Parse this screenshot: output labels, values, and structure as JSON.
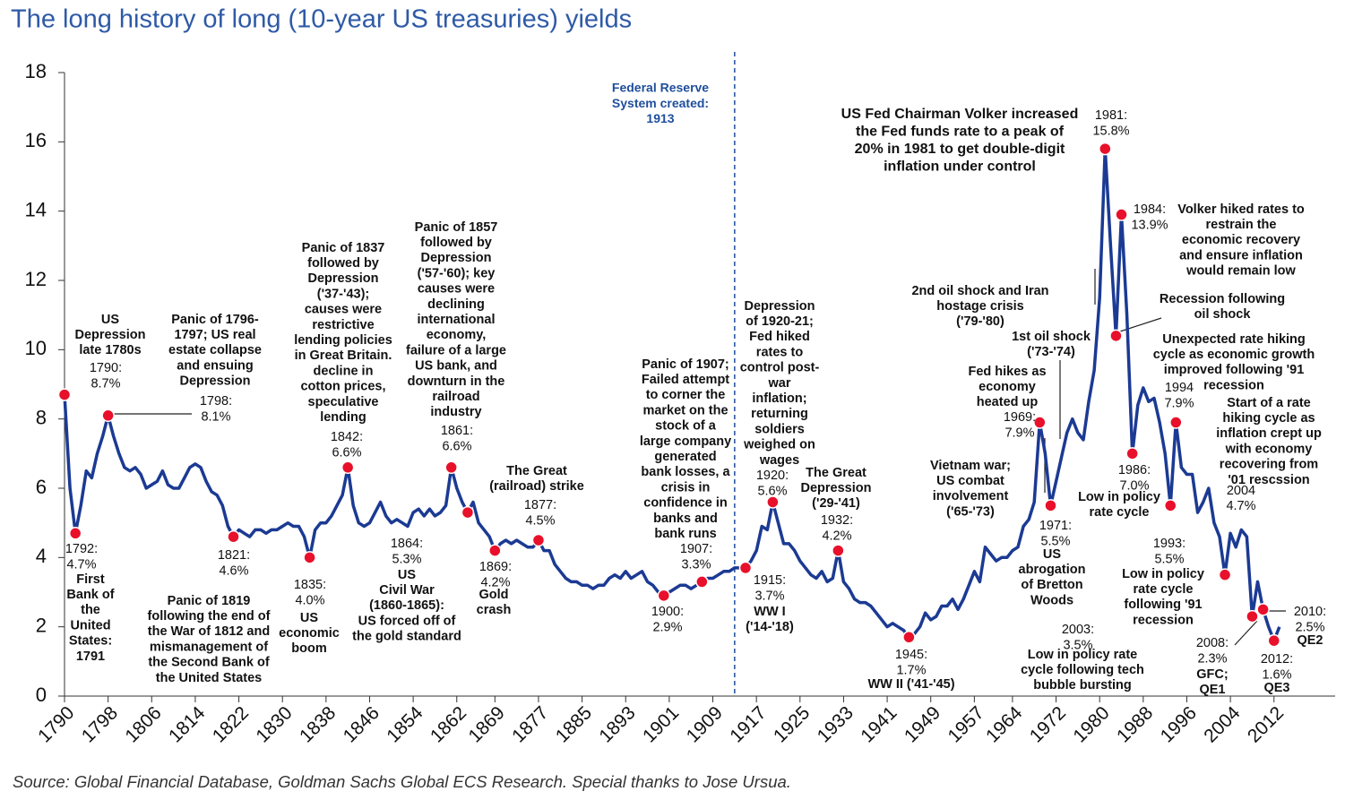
{
  "chart_data": {
    "type": "line",
    "title": "The long history of long (10-year US treasuries) yields",
    "source": "Source: Global Financial Database, Goldman Sachs Global ECS Research. Special thanks to Jose Ursua.",
    "color": "#1b3a93",
    "marker_color": "#e8102a",
    "xlim": [
      1790,
      2023
    ],
    "ylim": [
      0,
      18
    ],
    "yticks": [
      0,
      2,
      4,
      6,
      8,
      10,
      12,
      14,
      16,
      18
    ],
    "xticks": [
      1790,
      1798,
      1806,
      1814,
      1822,
      1830,
      1838,
      1846,
      1854,
      1862,
      1869,
      1877,
      1885,
      1893,
      1901,
      1909,
      1917,
      1925,
      1933,
      1941,
      1949,
      1957,
      1964,
      1972,
      1980,
      1988,
      1996,
      2004,
      2012
    ],
    "reference_line_x": 1913,
    "x": [
      1790,
      1791,
      1792,
      1793,
      1794,
      1795,
      1796,
      1797,
      1798,
      1799,
      1800,
      1801,
      1802,
      1803,
      1804,
      1805,
      1806,
      1807,
      1808,
      1809,
      1810,
      1811,
      1812,
      1813,
      1814,
      1815,
      1816,
      1817,
      1818,
      1819,
      1820,
      1821,
      1822,
      1823,
      1824,
      1825,
      1826,
      1827,
      1828,
      1829,
      1830,
      1831,
      1832,
      1833,
      1834,
      1835,
      1836,
      1837,
      1838,
      1839,
      1840,
      1841,
      1842,
      1843,
      1844,
      1845,
      1846,
      1847,
      1848,
      1849,
      1850,
      1851,
      1852,
      1853,
      1854,
      1855,
      1856,
      1857,
      1858,
      1859,
      1860,
      1861,
      1862,
      1863,
      1864,
      1865,
      1866,
      1867,
      1868,
      1869,
      1870,
      1871,
      1872,
      1873,
      1874,
      1875,
      1876,
      1877,
      1878,
      1879,
      1880,
      1881,
      1882,
      1883,
      1884,
      1885,
      1886,
      1887,
      1888,
      1889,
      1890,
      1891,
      1892,
      1893,
      1894,
      1895,
      1896,
      1897,
      1898,
      1899,
      1900,
      1901,
      1902,
      1903,
      1904,
      1905,
      1906,
      1907,
      1908,
      1909,
      1910,
      1911,
      1912,
      1913,
      1914,
      1915,
      1916,
      1917,
      1918,
      1919,
      1920,
      1921,
      1922,
      1923,
      1924,
      1925,
      1926,
      1927,
      1928,
      1929,
      1930,
      1931,
      1932,
      1933,
      1934,
      1935,
      1936,
      1937,
      1938,
      1939,
      1940,
      1941,
      1942,
      1943,
      1944,
      1945,
      1946,
      1947,
      1948,
      1949,
      1950,
      1951,
      1952,
      1953,
      1954,
      1955,
      1956,
      1957,
      1958,
      1959,
      1960,
      1961,
      1962,
      1963,
      1964,
      1965,
      1966,
      1967,
      1968,
      1969,
      1970,
      1971,
      1972,
      1973,
      1974,
      1975,
      1976,
      1977,
      1978,
      1979,
      1980,
      1981,
      1982,
      1983,
      1984,
      1985,
      1986,
      1987,
      1988,
      1989,
      1990,
      1991,
      1992,
      1993,
      1994,
      1995,
      1996,
      1997,
      1998,
      1999,
      2000,
      2001,
      2002,
      2003,
      2004,
      2005,
      2006,
      2007,
      2008,
      2009,
      2010,
      2011,
      2012,
      2013
    ],
    "values": [
      8.7,
      6.0,
      4.7,
      5.5,
      6.5,
      6.3,
      7.0,
      7.5,
      8.1,
      7.5,
      7.0,
      6.6,
      6.5,
      6.6,
      6.4,
      6.0,
      6.1,
      6.2,
      6.5,
      6.1,
      6.0,
      6.0,
      6.3,
      6.6,
      6.7,
      6.6,
      6.2,
      5.9,
      5.8,
      5.5,
      4.9,
      4.6,
      4.8,
      4.7,
      4.6,
      4.8,
      4.8,
      4.7,
      4.8,
      4.8,
      4.9,
      5.0,
      4.9,
      4.9,
      4.6,
      4.0,
      4.8,
      5.0,
      5.0,
      5.2,
      5.5,
      5.8,
      6.6,
      5.5,
      5.0,
      4.9,
      5.0,
      5.3,
      5.6,
      5.2,
      5.0,
      5.1,
      5.0,
      4.9,
      5.3,
      5.4,
      5.2,
      5.4,
      5.2,
      5.3,
      5.5,
      6.6,
      6.0,
      5.6,
      5.3,
      5.6,
      5.0,
      4.8,
      4.6,
      4.2,
      4.4,
      4.5,
      4.4,
      4.5,
      4.4,
      4.3,
      4.3,
      4.5,
      4.2,
      4.2,
      3.8,
      3.6,
      3.4,
      3.3,
      3.3,
      3.2,
      3.2,
      3.1,
      3.2,
      3.2,
      3.4,
      3.5,
      3.4,
      3.6,
      3.4,
      3.5,
      3.6,
      3.3,
      3.2,
      3.0,
      2.9,
      3.0,
      3.1,
      3.2,
      3.2,
      3.1,
      3.2,
      3.3,
      3.4,
      3.4,
      3.5,
      3.6,
      3.6,
      3.7,
      3.7,
      3.7,
      3.9,
      4.2,
      4.9,
      4.8,
      5.6,
      5.0,
      4.4,
      4.4,
      4.2,
      3.9,
      3.7,
      3.5,
      3.4,
      3.6,
      3.3,
      3.4,
      4.2,
      3.3,
      3.1,
      2.8,
      2.7,
      2.7,
      2.6,
      2.4,
      2.2,
      2.0,
      2.1,
      2.0,
      1.9,
      1.7,
      1.8,
      2.0,
      2.4,
      2.2,
      2.3,
      2.6,
      2.6,
      2.8,
      2.5,
      2.8,
      3.2,
      3.6,
      3.3,
      4.3,
      4.1,
      3.9,
      4.0,
      4.0,
      4.2,
      4.3,
      4.9,
      5.1,
      5.6,
      7.9,
      7.0,
      5.5,
      6.2,
      6.9,
      7.6,
      8.0,
      7.6,
      7.4,
      8.5,
      9.4,
      11.5,
      15.8,
      13.0,
      10.4,
      13.9,
      11.0,
      7.0,
      8.4,
      8.9,
      8.5,
      8.6,
      7.9,
      7.0,
      5.5,
      7.9,
      6.6,
      6.4,
      6.4,
      5.3,
      5.6,
      6.0,
      5.0,
      4.6,
      3.5,
      4.7,
      4.3,
      4.8,
      4.6,
      2.3,
      3.3,
      2.5,
      2.0,
      1.6,
      2.0
    ],
    "highlights": [
      {
        "x": 1790,
        "value": 8.7,
        "label": "1790:",
        "value_label": "8.7%"
      },
      {
        "x": 1792,
        "value": 4.7,
        "label": "1792:",
        "value_label": "4.7%"
      },
      {
        "x": 1798,
        "value": 8.1,
        "label": "1798:",
        "value_label": "8.1%"
      },
      {
        "x": 1821,
        "value": 4.6,
        "label": "1821:",
        "value_label": "4.6%"
      },
      {
        "x": 1835,
        "value": 4.0,
        "label": "1835:",
        "value_label": "4.0%"
      },
      {
        "x": 1842,
        "value": 6.6,
        "label": "1842:",
        "value_label": "6.6%"
      },
      {
        "x": 1861,
        "value": 6.6,
        "label": "1861:",
        "value_label": "6.6%"
      },
      {
        "x": 1864,
        "value": 5.3,
        "label": "1864:",
        "value_label": "5.3%"
      },
      {
        "x": 1869,
        "value": 4.2,
        "label": "1869:",
        "value_label": "4.2%"
      },
      {
        "x": 1877,
        "value": 4.5,
        "label": "1877:",
        "value_label": "4.5%"
      },
      {
        "x": 1900,
        "value": 2.9,
        "label": "1900:",
        "value_label": "2.9%"
      },
      {
        "x": 1907,
        "value": 3.3,
        "label": "1907:",
        "value_label": "3.3%"
      },
      {
        "x": 1915,
        "value": 3.7,
        "label": "1915:",
        "value_label": "3.7%"
      },
      {
        "x": 1920,
        "value": 5.6,
        "label": "1920:",
        "value_label": "5.6%"
      },
      {
        "x": 1932,
        "value": 4.2,
        "label": "1932:",
        "value_label": "4.2%"
      },
      {
        "x": 1945,
        "value": 1.7,
        "label": "1945:",
        "value_label": "1.7%"
      },
      {
        "x": 1969,
        "value": 7.9,
        "label": "1969:",
        "value_label": "7.9%"
      },
      {
        "x": 1971,
        "value": 5.5,
        "label": "1971:",
        "value_label": "5.5%"
      },
      {
        "x": 1981,
        "value": 15.8,
        "label": "1981:",
        "value_label": "15.8%"
      },
      {
        "x": 1984,
        "value": 13.9,
        "label": "1984:",
        "value_label": "13.9%"
      },
      {
        "x": 1983,
        "value": 10.4
      },
      {
        "x": 1986,
        "value": 7.0,
        "label": "1986:",
        "value_label": "7.0%"
      },
      {
        "x": 1993,
        "value": 5.5,
        "label": "1993:",
        "value_label": "5.5%"
      },
      {
        "x": 1994,
        "value": 7.9,
        "label": "1994",
        "value_label": "7.9%"
      },
      {
        "x": 2003,
        "value": 3.5,
        "label": "2003:",
        "value_label": "3.5%"
      },
      {
        "x": 2008,
        "value": 2.3,
        "label": "2008:",
        "value_label": "2.3%"
      },
      {
        "x": 2010,
        "value": 2.5,
        "label": "2010:",
        "value_label": "2.5%"
      },
      {
        "x": 2012,
        "value": 1.6,
        "label": "2012:",
        "value_label": "1.6%"
      }
    ],
    "annotations": [
      {
        "lines": [
          "US",
          "Depression",
          "late 1780s"
        ]
      },
      {
        "lines": [
          "First",
          "Bank of",
          "the",
          "United",
          "States:",
          "1791"
        ]
      },
      {
        "lines": [
          "Panic of 1796-",
          "1797; US real",
          "estate collapse",
          "and ensuing",
          "Depression"
        ]
      },
      {
        "lines": [
          "Panic of 1819",
          "following the end of",
          "the War of 1812 and",
          "mismanagement of",
          "the Second Bank of",
          "the United States"
        ]
      },
      {
        "lines": [
          "Panic of 1837",
          "followed by",
          "Depression",
          "('37-'43);",
          "causes were",
          "restrictive",
          "lending policies",
          "in Great Britain.",
          "decline in",
          "cotton prices,",
          "speculative",
          "lending"
        ]
      },
      {
        "lines": [
          "US",
          "economic",
          "boom"
        ]
      },
      {
        "lines": [
          "Panic of 1857",
          "followed by",
          "Depression",
          "('57-'60); key",
          "causes were",
          "declining",
          "international",
          "economy,",
          "failure of a large",
          "US bank, and",
          "downturn in the",
          "railroad",
          "industry"
        ]
      },
      {
        "lines": [
          "US",
          "Civil War",
          "(1860-1865):",
          "US forced off of",
          "the gold standard"
        ]
      },
      {
        "lines": [
          "Gold",
          "crash"
        ]
      },
      {
        "lines": [
          "The Great",
          "(railroad) strike"
        ]
      },
      {
        "lines": [
          "Panic of 1907;",
          "Failed attempt",
          "to corner the",
          "market on the",
          "stock of a",
          "large company",
          "generated",
          "bank losses, a",
          "crisis in",
          "confidence in",
          "banks and",
          "bank runs"
        ]
      },
      {
        "lines": [
          "Federal Reserve",
          "System created:",
          "1913"
        ]
      },
      {
        "lines": [
          "Depression",
          "of 1920-21;",
          "Fed hiked",
          "rates to",
          "control post-",
          "war",
          "inflation;",
          "returning",
          "soldiers",
          "weighed on",
          "wages"
        ]
      },
      {
        "lines": [
          "WW I",
          "('14-'18)"
        ]
      },
      {
        "lines": [
          "The Great",
          "Depression",
          "('29-'41)"
        ]
      },
      {
        "lines": [
          "WW II ('41-'45)"
        ]
      },
      {
        "lines": [
          "US Fed Chairman Volker increased",
          "the Fed funds rate to a peak of",
          "20% in 1981 to get double-digit",
          "inflation under control"
        ]
      },
      {
        "lines": [
          "Volker hiked rates to",
          "restrain the",
          "economic recovery",
          "and ensure inflation",
          "would remain low"
        ]
      },
      {
        "lines": [
          "2nd oil shock and Iran",
          "hostage crisis",
          "('79-'80)"
        ]
      },
      {
        "lines": [
          "Recession following",
          "oil shock"
        ]
      },
      {
        "lines": [
          "1st oil shock",
          "('73-'74)"
        ]
      },
      {
        "lines": [
          "Unexpected rate hiking",
          "cycle as economic growth",
          "improved following '91",
          "recession"
        ]
      },
      {
        "lines": [
          "Fed hikes as",
          "economy",
          "heated up"
        ]
      },
      {
        "lines": [
          "Start of a rate",
          "hiking cycle as",
          "inflation crept up",
          "with economy",
          "recovering from",
          "'01 rescssion"
        ]
      },
      {
        "lines": [
          "Vietnam  war;",
          "US combat",
          "involvement",
          "('65-'73)"
        ]
      },
      {
        "lines": [
          "Low in policy",
          "rate cycle"
        ]
      },
      {
        "lines": [
          "US",
          "abrogation",
          "of Bretton",
          "Woods"
        ]
      },
      {
        "lines": [
          "Low in policy",
          "rate cycle",
          "following '91",
          "recession"
        ]
      },
      {
        "lines": [
          "Low in policy rate",
          "cycle following tech",
          "bubble bursting"
        ]
      },
      {
        "lines": [
          "GFC;",
          "QE1"
        ]
      },
      {
        "lines": [
          "QE2"
        ]
      },
      {
        "lines": [
          "QE3"
        ]
      },
      {
        "lines": [
          "2004",
          "4.7%"
        ]
      }
    ]
  }
}
